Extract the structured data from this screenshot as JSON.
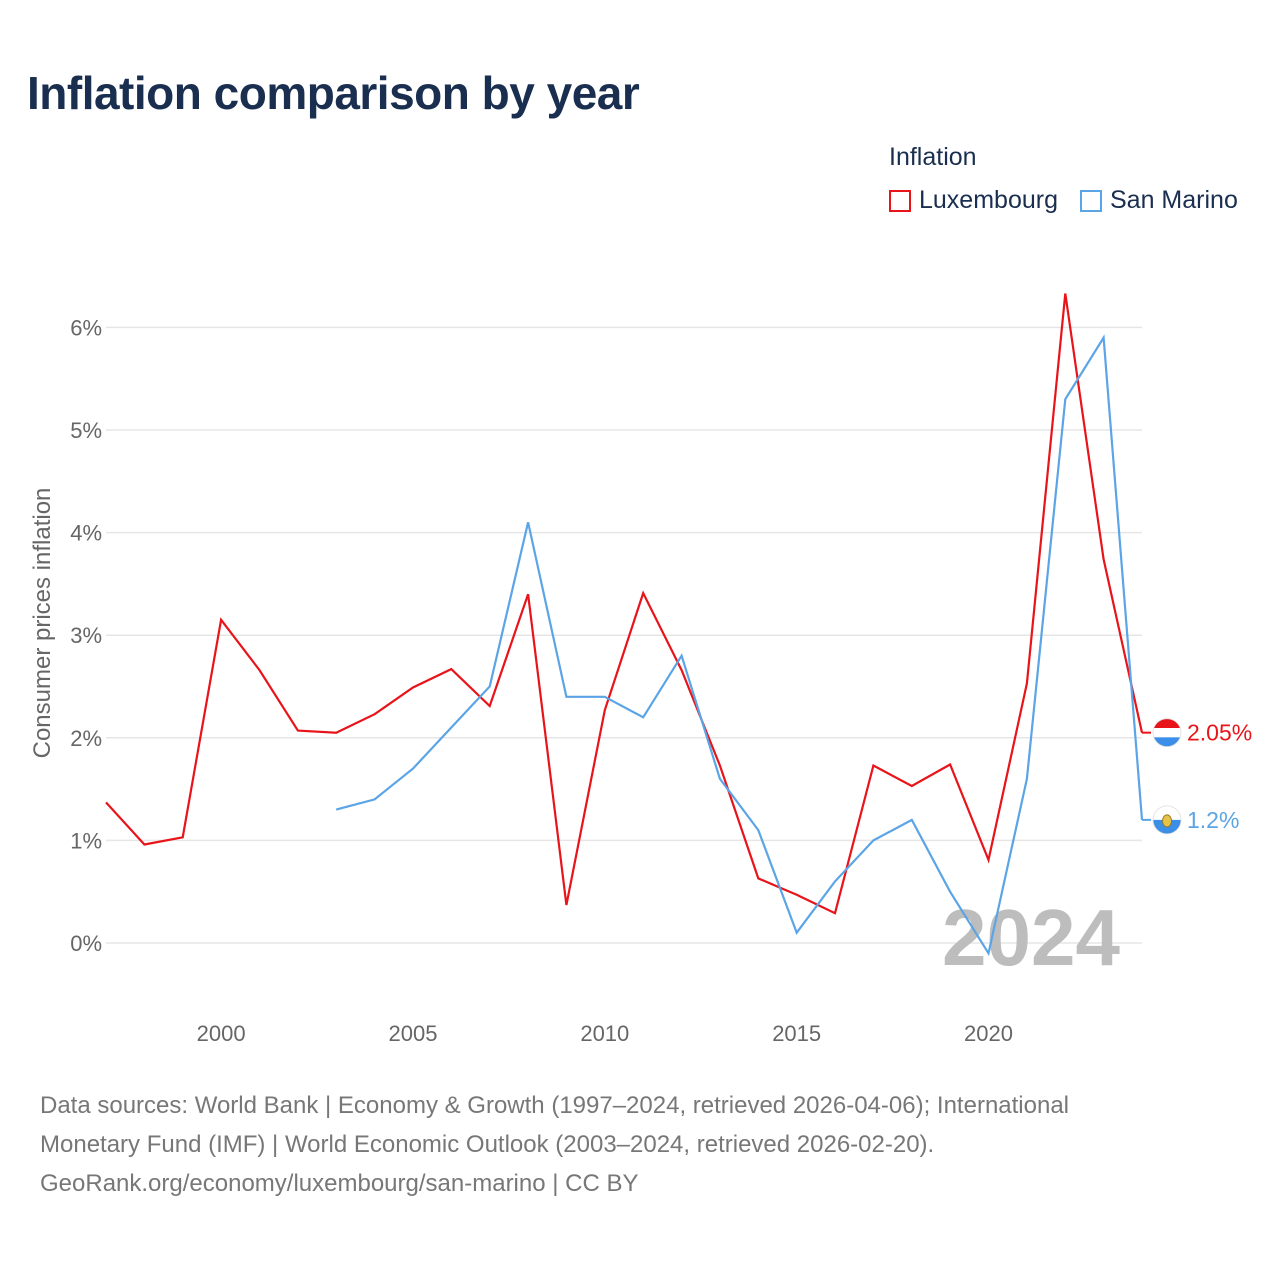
{
  "title": "Inflation comparison by year",
  "legend": {
    "title": "Inflation",
    "items": [
      {
        "label": "Luxembourg",
        "color": "#e8141a"
      },
      {
        "label": "San Marino",
        "color": "#5ba4e6"
      }
    ]
  },
  "chart_data": {
    "type": "line",
    "title": "Inflation comparison by year",
    "xlabel": "",
    "ylabel": "Consumer prices inflation",
    "xlim": [
      1997,
      2024
    ],
    "ylim": [
      -0.6,
      6.6
    ],
    "x_ticks": [
      2000,
      2005,
      2010,
      2015,
      2020
    ],
    "y_ticks": [
      0,
      1,
      2,
      3,
      4,
      5,
      6
    ],
    "y_tick_labels": [
      "0%",
      "1%",
      "2%",
      "3%",
      "4%",
      "5%",
      "6%"
    ],
    "grid": true,
    "current_year": "2024",
    "series": [
      {
        "name": "Luxembourg",
        "color": "#e8141a",
        "end_label": "2.05%",
        "x": [
          1997,
          1998,
          1999,
          2000,
          2001,
          2002,
          2003,
          2004,
          2005,
          2006,
          2007,
          2008,
          2009,
          2010,
          2011,
          2012,
          2013,
          2014,
          2015,
          2016,
          2017,
          2018,
          2019,
          2020,
          2021,
          2022,
          2023,
          2024
        ],
        "values": [
          1.37,
          0.96,
          1.03,
          3.15,
          2.66,
          2.07,
          2.05,
          2.23,
          2.49,
          2.67,
          2.31,
          3.4,
          0.37,
          2.27,
          3.41,
          2.66,
          1.73,
          0.63,
          0.47,
          0.29,
          1.73,
          1.53,
          1.74,
          0.81,
          2.53,
          6.33,
          3.74,
          2.05
        ]
      },
      {
        "name": "San Marino",
        "color": "#5ba4e6",
        "end_label": "1.2%",
        "x": [
          2003,
          2004,
          2005,
          2006,
          2007,
          2008,
          2009,
          2010,
          2011,
          2012,
          2013,
          2014,
          2015,
          2016,
          2017,
          2018,
          2019,
          2020,
          2021,
          2022,
          2023,
          2024
        ],
        "values": [
          1.3,
          1.4,
          1.7,
          2.1,
          2.5,
          4.1,
          2.4,
          2.4,
          2.2,
          2.8,
          1.6,
          1.1,
          0.1,
          0.6,
          1.0,
          1.2,
          0.5,
          -0.1,
          1.6,
          5.3,
          5.9,
          1.2
        ]
      }
    ]
  },
  "source": {
    "lines": [
      "Data sources: World Bank | Economy & Growth (1997–2024, retrieved 2026-04-06); International",
      "Monetary Fund (IMF) | World Economic Outlook (2003–2024, retrieved 2026-02-20).",
      "GeoRank.org/economy/luxembourg/san-marino | CC BY"
    ]
  }
}
